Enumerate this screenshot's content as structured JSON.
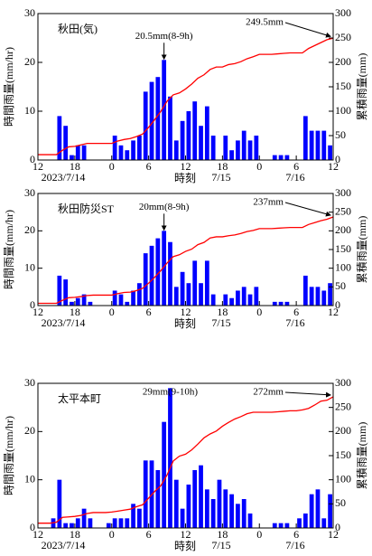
{
  "chart_data": [
    {
      "type": "bar",
      "station": "秋田(気)",
      "peak_label": "20.5mm(8-9h)",
      "total_label": "249.5mm",
      "ylabel": "時間雨量(mm/hr)",
      "y2label": "累積雨量(mm)",
      "xlabel": "時刻",
      "date_labels": [
        "2023/7/14",
        "7/15",
        "7/16"
      ],
      "xlim": [
        0,
        48
      ],
      "xticks": [
        {
          "value": 0,
          "label": "12"
        },
        {
          "value": 6,
          "label": "18"
        },
        {
          "value": 12,
          "label": "0"
        },
        {
          "value": 18,
          "label": "6"
        },
        {
          "value": 24,
          "label": "12"
        },
        {
          "value": 30,
          "label": "18"
        },
        {
          "value": 36,
          "label": "0"
        },
        {
          "value": 42,
          "label": "6"
        },
        {
          "value": 48,
          "label": "12"
        }
      ],
      "ylim": [
        0,
        30
      ],
      "yticks": [
        0,
        10,
        20,
        30
      ],
      "y2lim": [
        0,
        300
      ],
      "y2ticks": [
        0,
        50,
        100,
        150,
        200,
        250,
        300
      ],
      "bars": {
        "color": "#0000ff",
        "x": [
          0,
          1,
          2,
          3,
          4,
          5,
          6,
          7,
          8,
          9,
          10,
          11,
          12,
          13,
          14,
          15,
          16,
          17,
          18,
          19,
          20,
          21,
          22,
          23,
          24,
          25,
          26,
          27,
          28,
          29,
          30,
          31,
          32,
          33,
          34,
          35,
          36,
          37,
          38,
          39,
          40,
          41,
          42,
          43,
          44,
          45,
          46,
          47
        ],
        "values": [
          0,
          0,
          0,
          9,
          7,
          1,
          3,
          3,
          0,
          0,
          0,
          0,
          5,
          3,
          2,
          4,
          5,
          14,
          16,
          17,
          20.5,
          13,
          4,
          8,
          10,
          12,
          7,
          11,
          5,
          0,
          5,
          2,
          4,
          6,
          4,
          5,
          0,
          0,
          1,
          1,
          1,
          0,
          0,
          9,
          6,
          6,
          6,
          3
        ]
      },
      "cumulative": {
        "color": "#ff0000",
        "axis": "y2",
        "x": [
          0,
          1,
          2,
          3,
          4,
          5,
          6,
          7,
          8,
          9,
          10,
          11,
          12,
          13,
          14,
          15,
          16,
          17,
          18,
          19,
          20,
          21,
          22,
          23,
          24,
          25,
          26,
          27,
          28,
          29,
          30,
          31,
          32,
          33,
          34,
          35,
          36,
          37,
          38,
          39,
          40,
          41,
          42,
          43,
          44,
          45,
          46,
          47,
          48
        ],
        "values": [
          11,
          11,
          11,
          11,
          20,
          27,
          28,
          31,
          34,
          34,
          34,
          34,
          34,
          39,
          42,
          44,
          48,
          53,
          67,
          83,
          100,
          120.5,
          133.5,
          137.5,
          145.5,
          155.5,
          167.5,
          174.5,
          185.5,
          190.5,
          190.5,
          195.5,
          197.5,
          201.5,
          207.5,
          211.5,
          216.5,
          216.5,
          216.5,
          217.5,
          218.5,
          219.5,
          219.5,
          219.5,
          228.5,
          234.5,
          240.5,
          246.5,
          249.5
        ]
      }
    },
    {
      "type": "bar",
      "station": "秋田防災ST",
      "peak_label": "20mm(8-9h)",
      "total_label": "237mm",
      "ylabel": "時間雨量(mm/hr)",
      "y2label": "累積雨量(mm)",
      "xlabel": "時刻",
      "date_labels": [
        "2023/7/14",
        "7/15",
        "7/16"
      ],
      "xlim": [
        0,
        48
      ],
      "xticks": [
        {
          "value": 0,
          "label": "12"
        },
        {
          "value": 6,
          "label": "18"
        },
        {
          "value": 12,
          "label": "0"
        },
        {
          "value": 18,
          "label": "6"
        },
        {
          "value": 24,
          "label": "12"
        },
        {
          "value": 30,
          "label": "18"
        },
        {
          "value": 36,
          "label": "0"
        },
        {
          "value": 42,
          "label": "6"
        },
        {
          "value": 48,
          "label": "12"
        }
      ],
      "ylim": [
        0,
        30
      ],
      "yticks": [
        0,
        10,
        20,
        30
      ],
      "y2lim": [
        0,
        300
      ],
      "y2ticks": [
        0,
        50,
        100,
        150,
        200,
        250,
        300
      ],
      "bars": {
        "color": "#0000ff",
        "x": [
          0,
          1,
          2,
          3,
          4,
          5,
          6,
          7,
          8,
          9,
          10,
          11,
          12,
          13,
          14,
          15,
          16,
          17,
          18,
          19,
          20,
          21,
          22,
          23,
          24,
          25,
          26,
          27,
          28,
          29,
          30,
          31,
          32,
          33,
          34,
          35,
          36,
          37,
          38,
          39,
          40,
          41,
          42,
          43,
          44,
          45,
          46,
          47
        ],
        "values": [
          0,
          0,
          0,
          8,
          7,
          1,
          2,
          3,
          1,
          0,
          0,
          0,
          4,
          3,
          1,
          4,
          6,
          14,
          16,
          18,
          20,
          17,
          5,
          9,
          6,
          12,
          6,
          12,
          3,
          0,
          3,
          2,
          4,
          5,
          3,
          5,
          0,
          0,
          1,
          1,
          1,
          0,
          0,
          8,
          5,
          5,
          4,
          6
        ]
      },
      "cumulative": {
        "color": "#ff0000",
        "axis": "y2",
        "x": [
          0,
          1,
          2,
          3,
          4,
          5,
          6,
          7,
          8,
          9,
          10,
          11,
          12,
          13,
          14,
          15,
          16,
          17,
          18,
          19,
          20,
          21,
          22,
          23,
          24,
          25,
          26,
          27,
          28,
          29,
          30,
          31,
          32,
          33,
          34,
          35,
          36,
          37,
          38,
          39,
          40,
          41,
          42,
          43,
          44,
          45,
          46,
          47,
          48
        ],
        "values": [
          6,
          6,
          6,
          6,
          14,
          21,
          22,
          24,
          27,
          28,
          28,
          28,
          28,
          32,
          35,
          36,
          40,
          46,
          60,
          76,
          94,
          114,
          131,
          136,
          145,
          151,
          163,
          169,
          181,
          184,
          184,
          187,
          189,
          193,
          198,
          201,
          206,
          206,
          206,
          207,
          208,
          209,
          209,
          209,
          217,
          222,
          227,
          231,
          237
        ]
      }
    },
    {
      "type": "bar",
      "station": "太平本町",
      "peak_label": "29mm(9-10h)",
      "total_label": "272mm",
      "ylabel": "時間雨量(mm/hr)",
      "y2label": "累積雨量(mm)",
      "xlabel": "時刻",
      "date_labels": [
        "2023/7/14",
        "7/15",
        "7/16"
      ],
      "xlim": [
        0,
        48
      ],
      "xticks": [
        {
          "value": 0,
          "label": "12"
        },
        {
          "value": 6,
          "label": "18"
        },
        {
          "value": 12,
          "label": "0"
        },
        {
          "value": 18,
          "label": "6"
        },
        {
          "value": 24,
          "label": "12"
        },
        {
          "value": 30,
          "label": "18"
        },
        {
          "value": 36,
          "label": "0"
        },
        {
          "value": 42,
          "label": "6"
        },
        {
          "value": 48,
          "label": "12"
        }
      ],
      "ylim": [
        0,
        30
      ],
      "yticks": [
        0,
        10,
        20,
        30
      ],
      "y2lim": [
        0,
        300
      ],
      "y2ticks": [
        0,
        50,
        100,
        150,
        200,
        250,
        300
      ],
      "bars": {
        "color": "#0000ff",
        "x": [
          0,
          1,
          2,
          3,
          4,
          5,
          6,
          7,
          8,
          9,
          10,
          11,
          12,
          13,
          14,
          15,
          16,
          17,
          18,
          19,
          20,
          21,
          22,
          23,
          24,
          25,
          26,
          27,
          28,
          29,
          30,
          31,
          32,
          33,
          34,
          35,
          36,
          37,
          38,
          39,
          40,
          41,
          42,
          43,
          44,
          45,
          46,
          47
        ],
        "values": [
          0,
          0,
          2,
          10,
          1,
          1,
          2,
          4,
          2,
          0,
          0,
          1,
          2,
          2,
          2,
          5,
          4,
          14,
          14,
          12,
          22,
          29,
          10,
          4,
          9,
          12,
          13,
          8,
          6,
          10,
          8,
          7,
          5,
          6,
          3,
          0,
          0,
          0,
          1,
          1,
          1,
          0,
          2,
          3,
          7,
          8,
          2,
          7
        ]
      },
      "cumulative": {
        "color": "#ff0000",
        "axis": "y2",
        "x": [
          0,
          1,
          2,
          3,
          4,
          5,
          6,
          7,
          8,
          9,
          10,
          11,
          12,
          13,
          14,
          15,
          16,
          17,
          18,
          19,
          20,
          21,
          22,
          23,
          24,
          25,
          26,
          27,
          28,
          29,
          30,
          31,
          32,
          33,
          34,
          35,
          36,
          37,
          38,
          39,
          40,
          41,
          42,
          43,
          44,
          45,
          46,
          47,
          48
        ],
        "values": [
          10,
          10,
          10,
          12,
          22,
          23,
          24,
          26,
          30,
          32,
          32,
          32,
          33,
          35,
          37,
          39,
          44,
          48,
          62,
          76,
          88,
          110,
          139,
          149,
          153,
          162,
          174,
          187,
          195,
          201,
          211,
          219,
          226,
          231,
          237,
          240,
          240,
          240,
          240,
          241,
          242,
          243,
          243,
          245,
          248,
          255,
          263,
          265,
          272
        ]
      }
    }
  ]
}
